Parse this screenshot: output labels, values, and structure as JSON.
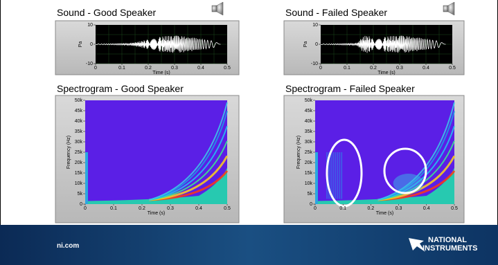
{
  "panels": [
    {
      "title": "Sound - Good Speaker",
      "y_label": "Pa",
      "x_label": "Time (s)",
      "yticks": [
        "-10",
        "0",
        "10"
      ],
      "xticks": [
        "0",
        "0.1",
        "0.2",
        "0.3",
        "0.4",
        "0.5"
      ]
    },
    {
      "title": "Sound - Failed Speaker",
      "y_label": "Pa",
      "x_label": "Time (s)",
      "yticks": [
        "-10",
        "0",
        "10"
      ],
      "xticks": [
        "0",
        "0.1",
        "0.2",
        "0.3",
        "0.4",
        "0.5"
      ]
    },
    {
      "title": "Spectrogram - Good Speaker",
      "y_label": "Frequency (Hz)",
      "x_label": "Time (s)",
      "yticks": [
        "0",
        "5k",
        "10k",
        "15k",
        "20k",
        "25k",
        "30k",
        "35k",
        "40k",
        "45k",
        "50k"
      ],
      "xticks": [
        "0",
        "0.1",
        "0.2",
        "0.3",
        "0.4",
        "0.5"
      ]
    },
    {
      "title": "Spectrogram - Failed Speaker",
      "y_label": "Frequency (Hz)",
      "x_label": "Time (s)",
      "yticks": [
        "0",
        "5k",
        "10k",
        "15k",
        "20k",
        "25k",
        "30k",
        "35k",
        "40k",
        "45k",
        "50k"
      ],
      "xticks": [
        "0",
        "0.1",
        "0.2",
        "0.3",
        "0.4",
        "0.5"
      ]
    }
  ],
  "footer": {
    "url": "ni.com",
    "logo_line1": "NATIONAL",
    "logo_line2": "INSTRUMENTS"
  }
}
